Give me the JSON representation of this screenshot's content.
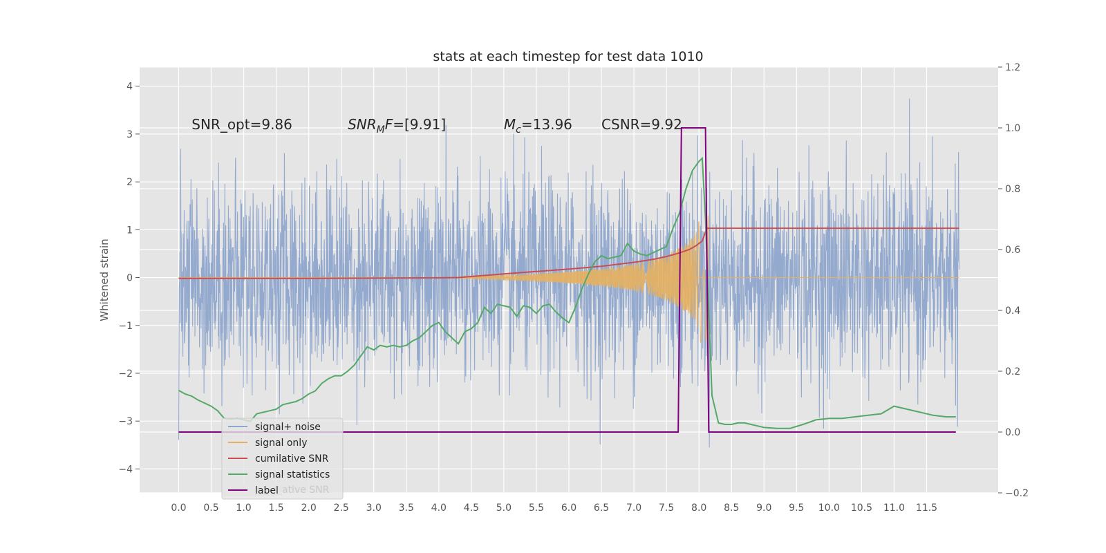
{
  "chart_data": {
    "type": "line",
    "title": "stats at each timestep for test data 1010",
    "ylabel": "Whitened strain",
    "xlim": [
      -0.6,
      12.6
    ],
    "ylim": [
      -4.5,
      4.4
    ],
    "y2lim": [
      -0.2,
      1.2
    ],
    "xticks": [
      0.0,
      0.5,
      1.0,
      1.5,
      2.0,
      2.5,
      3.0,
      3.5,
      4.0,
      4.5,
      5.0,
      5.5,
      6.0,
      6.5,
      7.0,
      7.5,
      8.0,
      8.5,
      9.0,
      9.5,
      10.0,
      10.5,
      11.0,
      11.5
    ],
    "xtick_labels": [
      "0.0",
      "0.5",
      "1.0",
      "1.5",
      "2.0",
      "2.5",
      "3.0",
      "3.5",
      "4.0",
      "4.5",
      "5.0",
      "5.5",
      "6.0",
      "6.5",
      "7.0",
      "7.5",
      "8.0",
      "8.5",
      "9.0",
      "9.5",
      "10.0",
      "10.5",
      "11.0",
      "11.5"
    ],
    "yticks": [
      -4,
      -3,
      -2,
      -1,
      0,
      1,
      2,
      3,
      4
    ],
    "ytick_labels": [
      "−4",
      "−3",
      "−2",
      "−1",
      "0",
      "1",
      "2",
      "3",
      "4"
    ],
    "y2ticks": [
      -0.2,
      0.0,
      0.2,
      0.4,
      0.6,
      0.8,
      1.0,
      1.2
    ],
    "y2tick_labels": [
      "−0.2",
      "0.0",
      "0.2",
      "0.4",
      "0.6",
      "0.8",
      "1.0",
      "1.2"
    ],
    "grid": true,
    "legend_position": "lower-left",
    "annotations": [
      {
        "id": "snr-opt",
        "text": "SNR_opt=9.86",
        "x": 0.2,
        "y": 3.2
      },
      {
        "id": "snr-mf",
        "text": "SNR",
        "sub": "M",
        "rest": "F=[9.91]",
        "italic": true,
        "x": 2.6,
        "y": 3.2
      },
      {
        "id": "mc",
        "text": "M",
        "sub": "c",
        "rest": "=13.96",
        "italic": true,
        "x": 5.0,
        "y": 3.2
      },
      {
        "id": "csnr",
        "text": "CSNR=9.92",
        "x": 6.5,
        "y": 3.2
      }
    ],
    "series": [
      {
        "name": "signal+ noise",
        "color": "#8ea5cc",
        "axis": "left",
        "style": "noise",
        "x_range": [
          0.0,
          12.0
        ],
        "envelope": 1.8,
        "peak_hint": 4.05
      },
      {
        "name": "signal only",
        "color": "#e6b060",
        "axis": "left",
        "style": "chirp",
        "x_range": [
          4.3,
          8.15
        ],
        "x": [
          4.3,
          5.0,
          5.5,
          6.0,
          6.5,
          7.0,
          7.3,
          7.5,
          7.7,
          7.85,
          7.95,
          8.05,
          8.12
        ],
        "amplitude": [
          0.02,
          0.05,
          0.08,
          0.12,
          0.18,
          0.28,
          0.38,
          0.48,
          0.62,
          0.78,
          0.9,
          1.5,
          1.3
        ]
      },
      {
        "name": "cumilative SNR",
        "color": "#c84e52",
        "axis": "right",
        "x": [
          0.0,
          1.0,
          2.0,
          3.0,
          4.0,
          4.3,
          4.6,
          5.0,
          5.5,
          6.0,
          6.5,
          7.0,
          7.3,
          7.5,
          7.7,
          7.85,
          7.95,
          8.05,
          8.12,
          8.5,
          10.0,
          12.0
        ],
        "y": [
          0.505,
          0.505,
          0.505,
          0.506,
          0.507,
          0.508,
          0.513,
          0.52,
          0.528,
          0.536,
          0.545,
          0.558,
          0.568,
          0.577,
          0.589,
          0.6,
          0.612,
          0.628,
          0.67,
          0.67,
          0.67,
          0.67
        ]
      },
      {
        "name": "signal statistics",
        "color": "#55a868",
        "axis": "right",
        "x": [
          0.0,
          0.1,
          0.2,
          0.3,
          0.4,
          0.5,
          0.6,
          0.7,
          0.8,
          0.9,
          1.0,
          1.1,
          1.2,
          1.3,
          1.4,
          1.5,
          1.6,
          1.7,
          1.8,
          1.9,
          2.0,
          2.1,
          2.2,
          2.3,
          2.4,
          2.5,
          2.6,
          2.7,
          2.8,
          2.9,
          3.0,
          3.1,
          3.2,
          3.3,
          3.4,
          3.5,
          3.6,
          3.7,
          3.8,
          3.9,
          4.0,
          4.1,
          4.2,
          4.3,
          4.4,
          4.5,
          4.6,
          4.7,
          4.8,
          4.9,
          5.0,
          5.1,
          5.2,
          5.3,
          5.4,
          5.5,
          5.6,
          5.7,
          5.8,
          5.9,
          6.0,
          6.1,
          6.2,
          6.3,
          6.4,
          6.5,
          6.6,
          6.7,
          6.8,
          6.9,
          7.0,
          7.1,
          7.2,
          7.3,
          7.4,
          7.5,
          7.6,
          7.7,
          7.8,
          7.9,
          8.0,
          8.05,
          8.1,
          8.15,
          8.2,
          8.3,
          8.4,
          8.5,
          8.6,
          8.7,
          8.8,
          8.9,
          9.0,
          9.2,
          9.4,
          9.6,
          9.8,
          10.0,
          10.2,
          10.4,
          10.6,
          10.8,
          11.0,
          11.2,
          11.4,
          11.6,
          11.8,
          11.95
        ],
        "y": [
          0.137,
          0.125,
          0.118,
          0.105,
          0.095,
          0.085,
          0.07,
          0.045,
          0.043,
          0.045,
          0.04,
          0.035,
          0.06,
          0.065,
          0.07,
          0.075,
          0.09,
          0.095,
          0.1,
          0.11,
          0.125,
          0.135,
          0.16,
          0.175,
          0.185,
          0.185,
          0.2,
          0.22,
          0.25,
          0.28,
          0.27,
          0.285,
          0.28,
          0.285,
          0.28,
          0.285,
          0.3,
          0.31,
          0.33,
          0.35,
          0.36,
          0.33,
          0.31,
          0.29,
          0.33,
          0.34,
          0.36,
          0.41,
          0.39,
          0.42,
          0.415,
          0.41,
          0.38,
          0.415,
          0.41,
          0.39,
          0.415,
          0.42,
          0.395,
          0.375,
          0.36,
          0.41,
          0.47,
          0.52,
          0.56,
          0.58,
          0.57,
          0.575,
          0.58,
          0.62,
          0.595,
          0.585,
          0.58,
          0.59,
          0.6,
          0.61,
          0.67,
          0.72,
          0.8,
          0.86,
          0.89,
          0.9,
          0.7,
          0.4,
          0.12,
          0.03,
          0.025,
          0.025,
          0.03,
          0.03,
          0.025,
          0.02,
          0.015,
          0.012,
          0.012,
          0.025,
          0.04,
          0.045,
          0.045,
          0.05,
          0.055,
          0.06,
          0.085,
          0.075,
          0.065,
          0.055,
          0.05,
          0.05
        ]
      },
      {
        "name": "label",
        "color": "#800080",
        "axis": "right",
        "x": [
          0.0,
          7.68,
          7.73,
          8.1,
          8.15,
          11.95
        ],
        "y": [
          0.0,
          0.0,
          1.0,
          1.0,
          0.0,
          0.0
        ]
      }
    ],
    "legend_overlap_text": "cumilative SNR"
  }
}
